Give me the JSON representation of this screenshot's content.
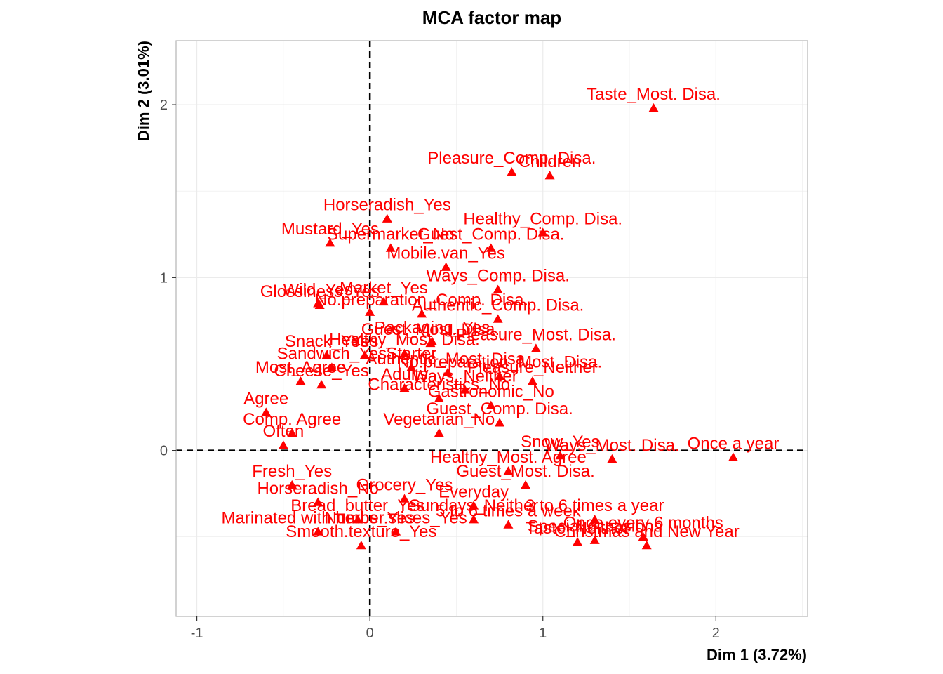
{
  "chart_data": {
    "type": "scatter",
    "title": "MCA factor map",
    "xlabel": "Dim 1 (3.72%)",
    "ylabel": "Dim 2 (3.01%)",
    "xlim": [
      -1.12,
      2.53
    ],
    "ylim": [
      -0.96,
      2.37
    ],
    "xticks": [
      -1,
      0,
      1,
      2
    ],
    "yticks": [
      0,
      1,
      2
    ],
    "xtick_labels": [
      "-1",
      "0",
      "1",
      "2"
    ],
    "ytick_labels": [
      "0",
      "1",
      "2"
    ],
    "grid": true,
    "reference_lines": {
      "x": 0,
      "y": 0,
      "style": "dashed"
    },
    "point_color": "#ff0000",
    "marker": "triangle",
    "points": [
      {
        "x": 1.64,
        "y": 1.98,
        "label": "Taste_Most. Disa."
      },
      {
        "x": 0.82,
        "y": 1.61,
        "label": "Pleasure_Comp. Disa."
      },
      {
        "x": 1.04,
        "y": 1.59,
        "label": "Children"
      },
      {
        "x": 0.1,
        "y": 1.34,
        "label": "Horseradish_Yes"
      },
      {
        "x": -0.23,
        "y": 1.2,
        "label": "Mustard_Yes"
      },
      {
        "x": 0.12,
        "y": 1.17,
        "label": "Supermarket_No"
      },
      {
        "x": 1.0,
        "y": 1.26,
        "label": "Healthy_Comp. Disa."
      },
      {
        "x": 0.7,
        "y": 1.17,
        "label": "Guest_Comp. Disa."
      },
      {
        "x": 0.44,
        "y": 1.06,
        "label": "Mobile.van_Yes"
      },
      {
        "x": 0.74,
        "y": 0.93,
        "label": "Ways_Comp. Disa."
      },
      {
        "x": -0.3,
        "y": 0.85,
        "label": "Wild_Yes"
      },
      {
        "x": 0.08,
        "y": 0.86,
        "label": "Market_Yes"
      },
      {
        "x": -0.29,
        "y": 0.84,
        "label": "Glossiness_Yes"
      },
      {
        "x": 0.0,
        "y": 0.8,
        "label": ""
      },
      {
        "x": 0.3,
        "y": 0.79,
        "label": "No.preparation_Comp. Disa."
      },
      {
        "x": 0.74,
        "y": 0.76,
        "label": "Authentic_Comp. Disa."
      },
      {
        "x": 0.35,
        "y": 0.62,
        "label": "Guest_Most. Disa."
      },
      {
        "x": 0.96,
        "y": 0.59,
        "label": "Pleasure_Most. Disa."
      },
      {
        "x": 0.36,
        "y": 0.63,
        "label": "Packaging_Yes"
      },
      {
        "x": -0.03,
        "y": 0.55,
        "label": "Yes"
      },
      {
        "x": -0.25,
        "y": 0.55,
        "label": "Snack_Yes"
      },
      {
        "x": -0.22,
        "y": 0.48,
        "label": "Sandwich_Yes"
      },
      {
        "x": 0.2,
        "y": 0.56,
        "label": "Healthy_Most. Disa."
      },
      {
        "x": 0.24,
        "y": 0.48,
        "label": "Starter"
      },
      {
        "x": 0.45,
        "y": 0.45,
        "label": "Authentic_Most. Disa."
      },
      {
        "x": 0.94,
        "y": 0.4,
        "label": "Pleasure_Neither"
      },
      {
        "x": 0.75,
        "y": 0.43,
        "label": "No.preparation_Most. Disa."
      },
      {
        "x": -0.4,
        "y": 0.4,
        "label": "Most_Agree"
      },
      {
        "x": -0.28,
        "y": 0.38,
        "label": "Cheese_Yes"
      },
      {
        "x": 0.2,
        "y": 0.36,
        "label": "Adults"
      },
      {
        "x": 0.55,
        "y": 0.35,
        "label": "Ways_Neither"
      },
      {
        "x": 0.4,
        "y": 0.3,
        "label": "Characteristics_No"
      },
      {
        "x": 0.7,
        "y": 0.26,
        "label": "Gastronomic_No"
      },
      {
        "x": 0.75,
        "y": 0.16,
        "label": "Guest_Comp. Disa."
      },
      {
        "x": 0.4,
        "y": 0.1,
        "label": "Vegetarian_No"
      },
      {
        "x": -0.6,
        "y": 0.22,
        "label": "Agree"
      },
      {
        "x": -0.45,
        "y": 0.1,
        "label": "Comp. Agree"
      },
      {
        "x": -0.5,
        "y": 0.03,
        "label": "Often"
      },
      {
        "x": 2.1,
        "y": -0.04,
        "label": "Once a year"
      },
      {
        "x": 1.4,
        "y": -0.05,
        "label": "Ways_Most. Disa."
      },
      {
        "x": 1.1,
        "y": -0.03,
        "label": "Snow_Yes"
      },
      {
        "x": 0.8,
        "y": -0.12,
        "label": "Healthy_Most. Agree"
      },
      {
        "x": 0.9,
        "y": -0.2,
        "label": "Guest_Most. Disa."
      },
      {
        "x": -0.45,
        "y": -0.2,
        "label": "Fresh_Yes"
      },
      {
        "x": -0.3,
        "y": -0.3,
        "label": "Horseradish_No"
      },
      {
        "x": 0.6,
        "y": -0.32,
        "label": "Everyday"
      },
      {
        "x": 0.2,
        "y": -0.28,
        "label": "Grocery_Yes"
      },
      {
        "x": 0.6,
        "y": -0.4,
        "label": "Sundays_Neither"
      },
      {
        "x": 1.3,
        "y": -0.4,
        "label": "3 to 6 times a year"
      },
      {
        "x": 0.8,
        "y": -0.43,
        "label": "5 to 6 times a week"
      },
      {
        "x": 1.58,
        "y": -0.5,
        "label": "Once every 6 months"
      },
      {
        "x": -0.07,
        "y": -0.4,
        "label": "Bread_butter_Yes"
      },
      {
        "x": 0.15,
        "y": -0.47,
        "label": "Number.slices_Yes"
      },
      {
        "x": 1.3,
        "y": -0.52,
        "label": "Special occasions"
      },
      {
        "x": 1.2,
        "y": -0.53,
        "label": "Taste_Neither"
      },
      {
        "x": 1.6,
        "y": -0.55,
        "label": "Christmas and New Year"
      },
      {
        "x": -0.3,
        "y": -0.47,
        "label": "Marinated with herbs_Yes"
      },
      {
        "x": -0.05,
        "y": -0.55,
        "label": "Smooth.texture_Yes"
      }
    ]
  }
}
